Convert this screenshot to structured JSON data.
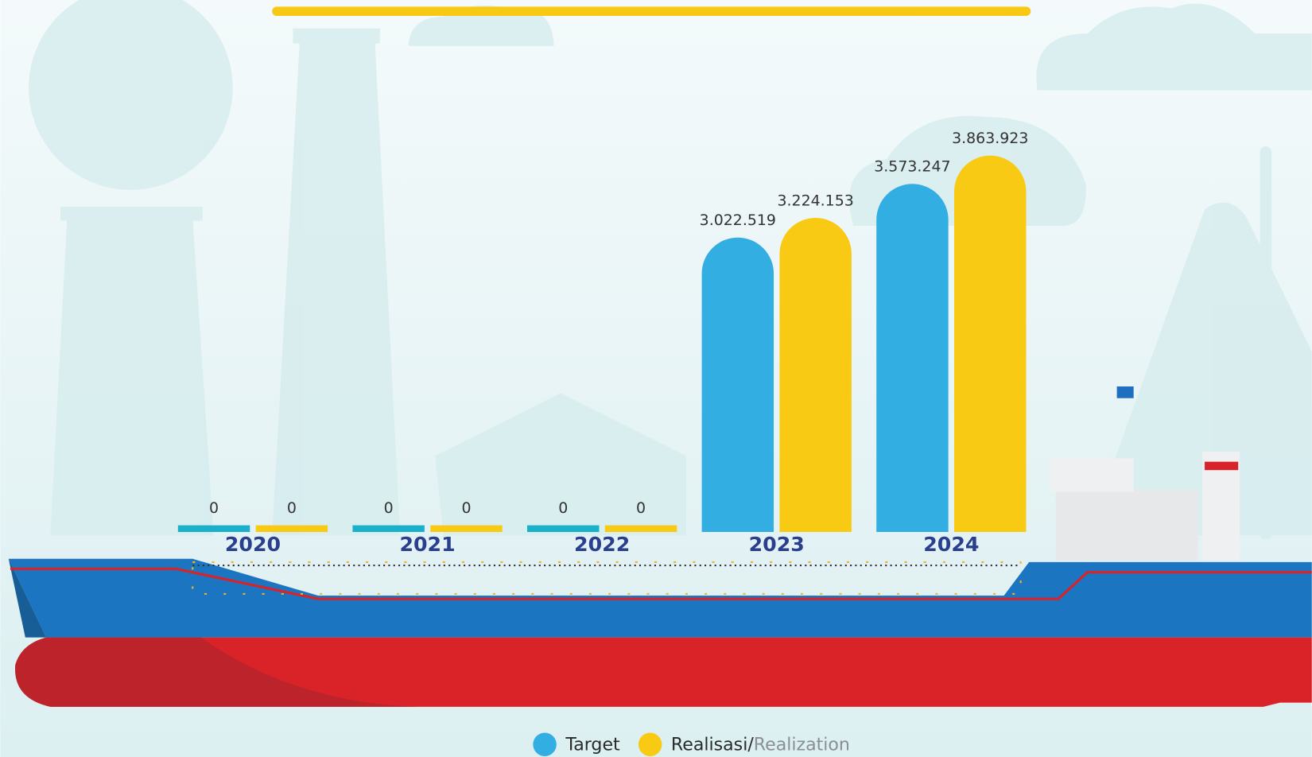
{
  "chart_data": {
    "type": "bar",
    "categories": [
      "2020",
      "2021",
      "2022",
      "2023",
      "2024"
    ],
    "series": [
      {
        "name": "Target",
        "color": "#33aee3",
        "values": [
          0,
          0,
          0,
          3022519,
          3573247
        ],
        "value_labels": [
          "0",
          "0",
          "0",
          "3.022.519",
          "3.573.247"
        ]
      },
      {
        "name": "Realisasi/Realization",
        "color": "#f8ca14",
        "values": [
          0,
          0,
          0,
          3224153,
          3863923
        ],
        "value_labels": [
          "0",
          "0",
          "0",
          "3.224.153",
          "3.863.923"
        ]
      }
    ],
    "legend": "bottom"
  }
}
